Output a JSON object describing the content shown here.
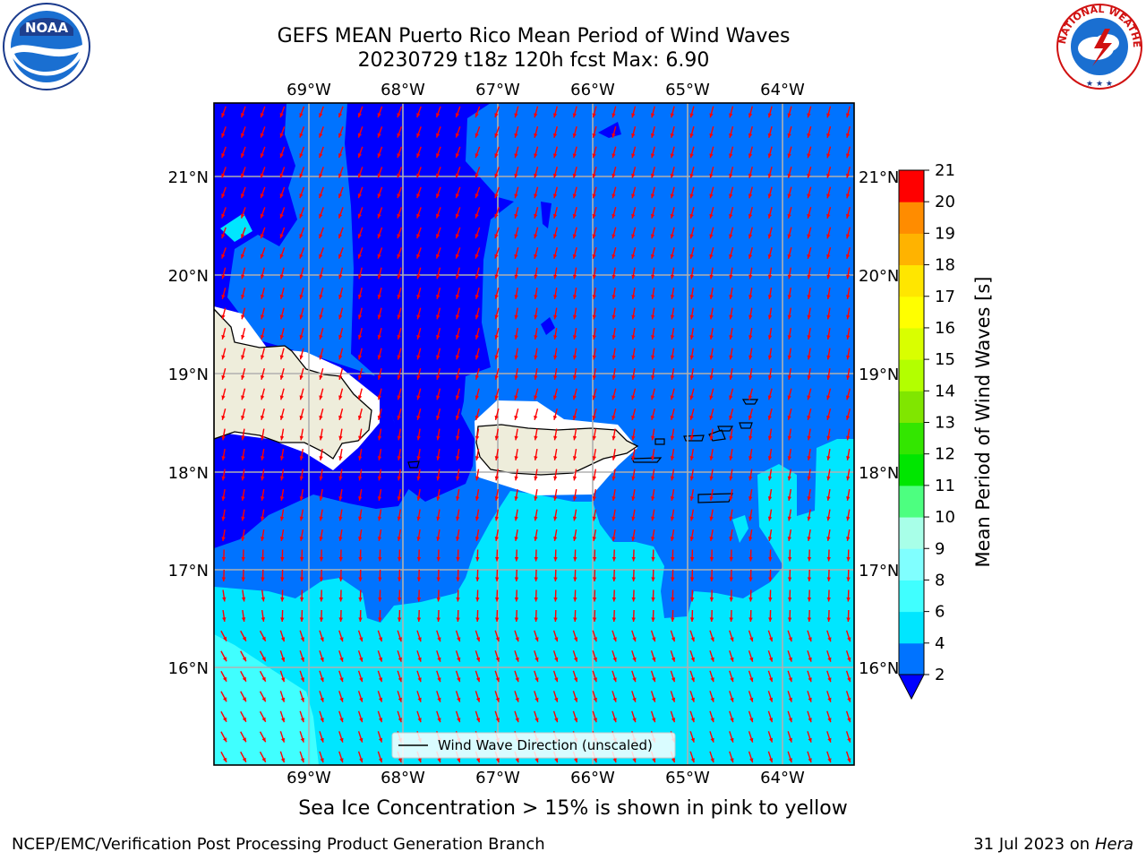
{
  "title": {
    "line1": "GEFS MEAN Puerto Rico Mean Period of Wind Waves",
    "line2": "20230729 t18z 120h fcst   Max: 6.90"
  },
  "map": {
    "lon_labels": [
      "69°W",
      "68°W",
      "67°W",
      "66°W",
      "65°W",
      "64°W"
    ],
    "lat_labels": [
      "21°N",
      "20°N",
      "19°N",
      "18°N",
      "17°N",
      "16°N"
    ],
    "legend_label": "Wind Wave Direction (unscaled)",
    "arrow_color": "#ff0000",
    "land_color": "#eeeddb",
    "colors": {
      "band_lt2": "#0000ff",
      "band_2_4": "#0073ff",
      "band_4_6": "#00e6ff",
      "band_6_8": "#40ffff"
    }
  },
  "colorbar": {
    "label": "Mean Period of Wind Waves [s]",
    "ticks": [
      "2",
      "4",
      "6",
      "8",
      "9",
      "10",
      "11",
      "12",
      "13",
      "14",
      "15",
      "16",
      "17",
      "18",
      "19",
      "20",
      "21"
    ],
    "colors": [
      "#0073ff",
      "#00e6ff",
      "#40ffff",
      "#80ffff",
      "#a8ffe8",
      "#4dff80",
      "#00e600",
      "#33e600",
      "#80e600",
      "#b3ff00",
      "#d9ff00",
      "#ffff00",
      "#ffe600",
      "#ffb300",
      "#ff8c00",
      "#ff5a00",
      "#ff2b00",
      "#ff0000"
    ],
    "extend_color": "#0000ff"
  },
  "bottom_note": "Sea Ice Concentration > 15% is shown in pink to yellow",
  "footer": {
    "left": "NCEP/EMC/Verification Post Processing Product Generation Branch",
    "right_date": "31 Jul 2023 on ",
    "right_host": "Hera"
  },
  "logos": {
    "noaa_text": "NOAA",
    "nws_text": "NATIONAL WEATHER SERVICE"
  }
}
